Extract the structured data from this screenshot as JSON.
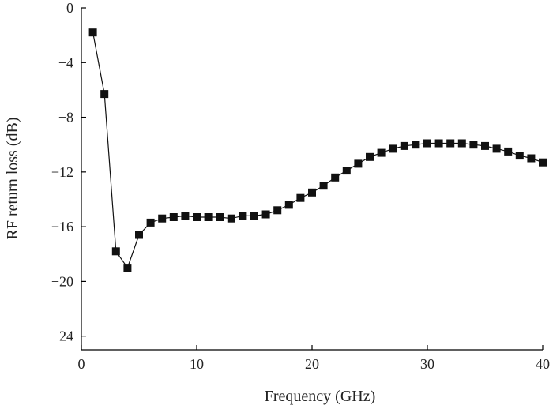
{
  "chart_data": {
    "type": "line",
    "title": "",
    "xlabel": "Frequency (GHz)",
    "ylabel": "RF return loss (dB)",
    "xlim": [
      0,
      40
    ],
    "ylim": [
      -25,
      0
    ],
    "xticks": [
      0,
      10,
      20,
      30,
      40
    ],
    "yticks": [
      0,
      -4,
      -8,
      -12,
      -16,
      -20,
      -24
    ],
    "xtick_labels": [
      "0",
      "10",
      "20",
      "30",
      "40"
    ],
    "ytick_labels": [
      "0",
      "−4",
      "−8",
      "−12",
      "−16",
      "−20",
      "−24"
    ],
    "grid": false,
    "legend": "none",
    "marker": "square",
    "color": "#111111",
    "series": [
      {
        "x": [
          1,
          2,
          3,
          4,
          5,
          6,
          7,
          8,
          9,
          10,
          11,
          12,
          13,
          14,
          15,
          16,
          17,
          18,
          19,
          20,
          21,
          22,
          23,
          24,
          25,
          26,
          27,
          28,
          29,
          30,
          31,
          32,
          33,
          34,
          35,
          36,
          37,
          38,
          39,
          40
        ],
        "y": [
          -1.8,
          -6.3,
          -17.8,
          -19.0,
          -16.6,
          -15.7,
          -15.4,
          -15.3,
          -15.2,
          -15.3,
          -15.3,
          -15.3,
          -15.4,
          -15.2,
          -15.2,
          -15.1,
          -14.8,
          -14.4,
          -13.9,
          -13.5,
          -13.0,
          -12.4,
          -11.9,
          -11.4,
          -10.9,
          -10.6,
          -10.3,
          -10.1,
          -10.0,
          -9.9,
          -9.9,
          -9.9,
          -9.9,
          -10.0,
          -10.1,
          -10.3,
          -10.5,
          -10.8,
          -11.0,
          -11.3
        ]
      }
    ]
  }
}
